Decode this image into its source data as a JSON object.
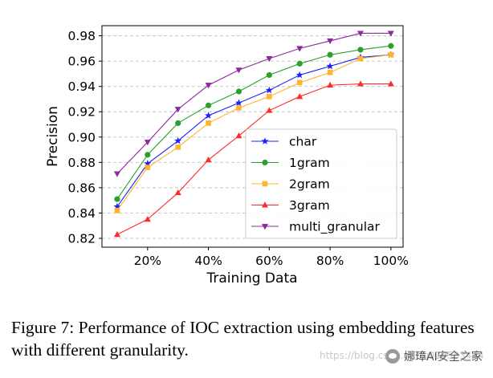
{
  "chart_data": {
    "type": "line",
    "title": "",
    "xlabel": "Training Data",
    "ylabel": "Precision",
    "x": [
      10,
      20,
      30,
      40,
      50,
      60,
      70,
      80,
      90,
      100
    ],
    "x_ticks": [
      20,
      40,
      60,
      80,
      100
    ],
    "x_tick_labels": [
      "20%",
      "40%",
      "60%",
      "80%",
      "100%"
    ],
    "xlim": [
      5,
      104
    ],
    "ylim": [
      0.813,
      0.988
    ],
    "y_ticks": [
      0.82,
      0.84,
      0.86,
      0.88,
      0.9,
      0.92,
      0.94,
      0.96,
      0.98
    ],
    "y_tick_labels": [
      "0.82",
      "0.84",
      "0.86",
      "0.88",
      "0.90",
      "0.92",
      "0.94",
      "0.96",
      "0.98"
    ],
    "grid": "horizontal-dashed",
    "legend_position": "lower-right",
    "series": [
      {
        "name": "char",
        "color": "#1f1fff",
        "marker": "star",
        "values": [
          0.845,
          0.879,
          0.897,
          0.917,
          0.927,
          0.937,
          0.949,
          0.956,
          0.963,
          0.965
        ]
      },
      {
        "name": "1gram",
        "color": "#2ca02c",
        "marker": "circle",
        "values": [
          0.851,
          0.886,
          0.911,
          0.925,
          0.936,
          0.949,
          0.958,
          0.965,
          0.969,
          0.972
        ]
      },
      {
        "name": "2gram",
        "color": "#ffb52b",
        "marker": "square",
        "values": [
          0.842,
          0.876,
          0.892,
          0.911,
          0.923,
          0.932,
          0.943,
          0.951,
          0.962,
          0.965
        ]
      },
      {
        "name": "3gram",
        "color": "#ff2a2a",
        "marker": "triangle-up",
        "values": [
          0.823,
          0.835,
          0.856,
          0.882,
          0.901,
          0.921,
          0.932,
          0.941,
          0.942,
          0.942
        ]
      },
      {
        "name": "multi_granular",
        "color": "#8b2a9b",
        "marker": "triangle-down",
        "values": [
          0.871,
          0.896,
          0.922,
          0.941,
          0.953,
          0.962,
          0.97,
          0.976,
          0.982,
          0.982
        ]
      }
    ]
  },
  "caption": "Figure 7: Performance of IOC extraction using embedding features with different granularity.",
  "watermark": {
    "url_text": "https://blog.csdn.net/u014583444",
    "brand": "娜璋AI安全之家"
  }
}
